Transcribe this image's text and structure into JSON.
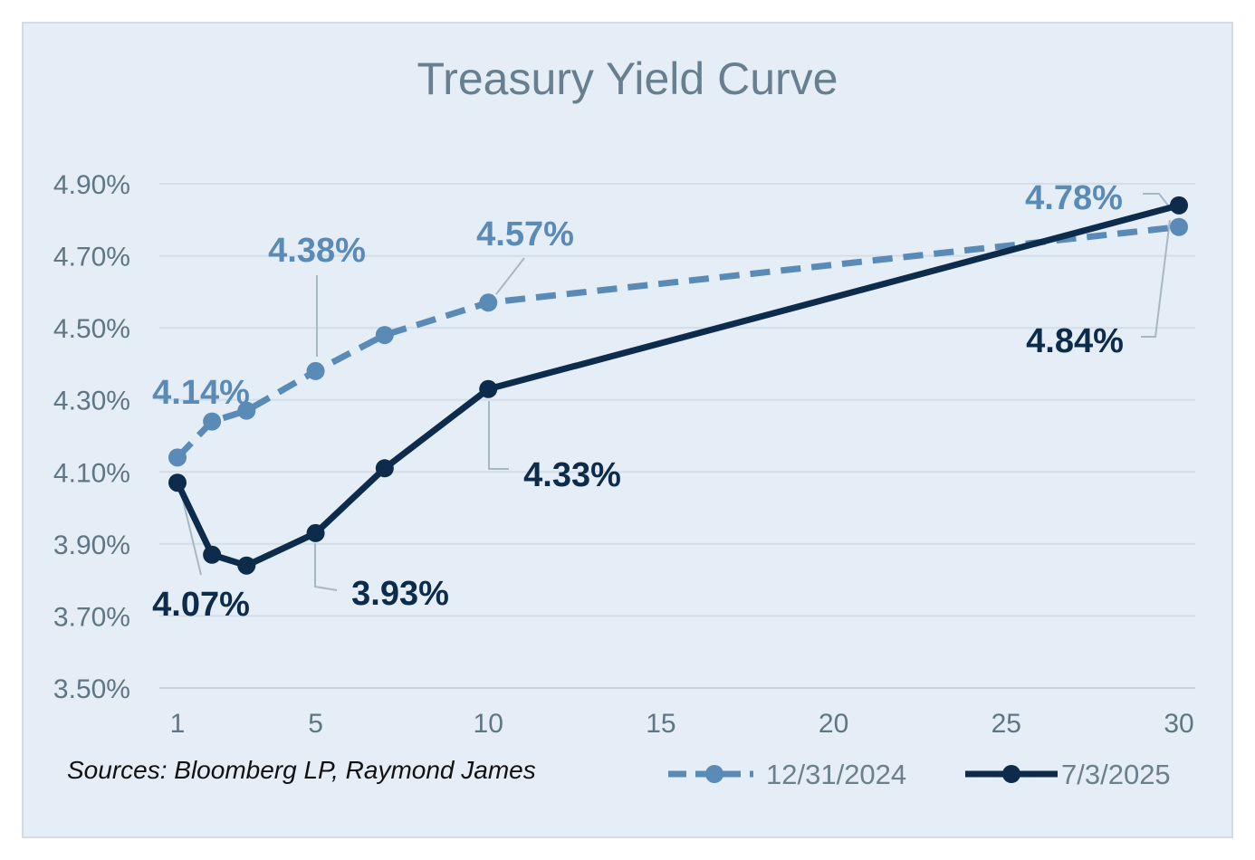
{
  "chart_data": {
    "type": "line",
    "title": "Treasury Yield Curve",
    "xlabel": "",
    "ylabel": "",
    "x_ticks": [
      "1",
      "5",
      "10",
      "15",
      "20",
      "25",
      "30"
    ],
    "y_ticks": [
      "4.90%",
      "4.70%",
      "4.50%",
      "4.30%",
      "4.10%",
      "3.90%",
      "3.70%",
      "3.50%"
    ],
    "xlim": [
      1,
      30
    ],
    "ylim": [
      3.5,
      4.9
    ],
    "grid": true,
    "legend_position": "bottom-right",
    "series": [
      {
        "name": "12/31/2024",
        "style": "dashed",
        "color": "#5a8ab6",
        "points": [
          {
            "x": 1,
            "y": 4.14
          },
          {
            "x": 2,
            "y": 4.24
          },
          {
            "x": 3,
            "y": 4.27
          },
          {
            "x": 5,
            "y": 4.38
          },
          {
            "x": 7,
            "y": 4.48
          },
          {
            "x": 10,
            "y": 4.57
          },
          {
            "x": 30,
            "y": 4.78
          }
        ],
        "labels": [
          {
            "x": 1,
            "text": "4.14%"
          },
          {
            "x": 5,
            "text": "4.38%"
          },
          {
            "x": 10,
            "text": "4.57%"
          },
          {
            "x": 30,
            "text": "4.78%"
          }
        ]
      },
      {
        "name": "7/3/2025",
        "style": "solid",
        "color": "#0d2b4a",
        "points": [
          {
            "x": 1,
            "y": 4.07
          },
          {
            "x": 2,
            "y": 3.87
          },
          {
            "x": 3,
            "y": 3.84
          },
          {
            "x": 5,
            "y": 3.93
          },
          {
            "x": 7,
            "y": 4.11
          },
          {
            "x": 10,
            "y": 4.33
          },
          {
            "x": 30,
            "y": 4.84
          }
        ],
        "labels": [
          {
            "x": 1,
            "text": "4.07%"
          },
          {
            "x": 5,
            "text": "3.93%"
          },
          {
            "x": 10,
            "text": "4.33%"
          },
          {
            "x": 30,
            "text": "4.84%"
          }
        ]
      }
    ],
    "source_note": "Sources: Bloomberg LP, Raymond James"
  }
}
